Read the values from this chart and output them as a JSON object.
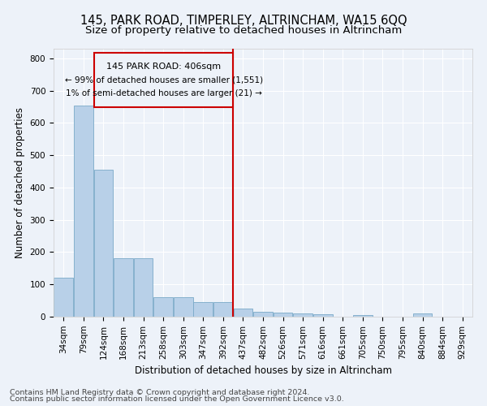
{
  "title": "145, PARK ROAD, TIMPERLEY, ALTRINCHAM, WA15 6QQ",
  "subtitle": "Size of property relative to detached houses in Altrincham",
  "xlabel": "Distribution of detached houses by size in Altrincham",
  "ylabel": "Number of detached properties",
  "footer_line1": "Contains HM Land Registry data © Crown copyright and database right 2024.",
  "footer_line2": "Contains public sector information licensed under the Open Government Licence v3.0.",
  "bin_labels": [
    "34sqm",
    "79sqm",
    "124sqm",
    "168sqm",
    "213sqm",
    "258sqm",
    "303sqm",
    "347sqm",
    "392sqm",
    "437sqm",
    "482sqm",
    "526sqm",
    "571sqm",
    "616sqm",
    "661sqm",
    "705sqm",
    "750sqm",
    "795sqm",
    "840sqm",
    "884sqm",
    "929sqm"
  ],
  "bar_values": [
    120,
    655,
    455,
    180,
    180,
    60,
    60,
    45,
    45,
    25,
    15,
    13,
    10,
    8,
    0,
    5,
    0,
    0,
    10,
    0,
    0
  ],
  "bar_color": "#b8d0e8",
  "bar_edge_color": "#7aaac8",
  "highlight_line_color": "#cc0000",
  "annotation_title": "145 PARK ROAD: 406sqm",
  "annotation_line1": "← 99% of detached houses are smaller (1,551)",
  "annotation_line2": "1% of semi-detached houses are larger (21) →",
  "annotation_box_color": "#cc0000",
  "ylim": [
    0,
    830
  ],
  "yticks": [
    0,
    100,
    200,
    300,
    400,
    500,
    600,
    700,
    800
  ],
  "bg_color": "#edf2f9",
  "grid_color": "#ffffff",
  "title_fontsize": 10.5,
  "subtitle_fontsize": 9.5,
  "axis_label_fontsize": 8.5,
  "tick_fontsize": 7.5,
  "footer_fontsize": 6.8
}
